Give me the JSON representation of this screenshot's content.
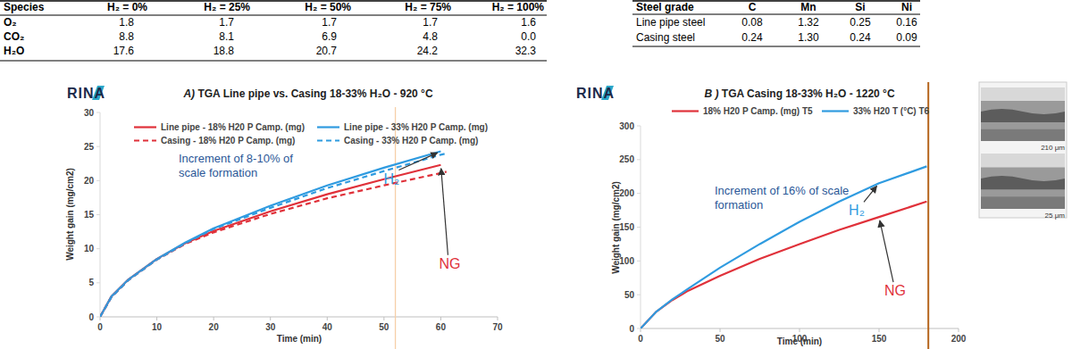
{
  "tables": [
    {
      "header": [
        "Species",
        "H₂ = 0%",
        "H₂ = 25%",
        "H₂ = 50%",
        "H₂ = 75%",
        "H₂ = 100%"
      ],
      "rows": [
        [
          "O₂",
          "1.8",
          "1.7",
          "1.7",
          "1.7",
          "1.6"
        ],
        [
          "CO₂",
          "8.8",
          "8.1",
          "6.9",
          "4.8",
          "0.0"
        ],
        [
          "H₂O",
          "17.6",
          "18.8",
          "20.7",
          "24.2",
          "32.3"
        ]
      ]
    },
    {
      "header": [
        "Steel grade",
        "C",
        "Mn",
        "Si",
        "Ni"
      ],
      "rows": [
        [
          "Line pipe steel",
          "0.08",
          "1.32",
          "0.25",
          "0.16"
        ],
        [
          "Casing steel",
          "0.24",
          "1.30",
          "0.24",
          "0.09"
        ]
      ]
    }
  ],
  "chart_data": [
    {
      "type": "line",
      "logo": "RINA",
      "panel": "A)",
      "title": "TGA Line pipe vs. Casing 18-33% H₂O - 920 °C",
      "x_label": "Time (min)",
      "y_label": "Weight gain (mg/cm2)",
      "x": [
        0,
        2,
        5,
        10,
        15,
        20,
        30,
        40,
        50,
        60,
        61
      ],
      "series": [
        {
          "name": "Line pipe - 18% H20 P Camp. (mg)",
          "color": "#e0313a",
          "line_style": "solid",
          "values": [
            0,
            3,
            5.5,
            8.5,
            10.8,
            12.6,
            15.5,
            18,
            20.2,
            22.3,
            null
          ]
        },
        {
          "name": "Line pipe - 33% H20 P Camp. (mg)",
          "color": "#2f9be0",
          "line_style": "solid",
          "values": [
            0,
            3,
            5.5,
            8.5,
            10.9,
            13,
            16.3,
            19.3,
            21.9,
            24.3,
            null
          ]
        },
        {
          "name": "Casing - 18% H20 P Camp. (mg)",
          "color": "#e0313a",
          "line_style": "dashed",
          "values": [
            0,
            2.9,
            5.4,
            8.4,
            10.7,
            12.4,
            15.1,
            17.4,
            19.3,
            21.1,
            21.3
          ]
        },
        {
          "name": "Casing - 33% H20 P Camp. (mg)",
          "color": "#2f9be0",
          "line_style": "dashed",
          "values": [
            0,
            2.9,
            5.4,
            8.4,
            10.8,
            12.9,
            16,
            18.9,
            21.4,
            23.8,
            24
          ]
        }
      ],
      "xlim": [
        0,
        70
      ],
      "ylim": [
        0,
        30
      ],
      "xticks": [
        0,
        10,
        20,
        30,
        40,
        50,
        60,
        70
      ],
      "yticks": [
        0,
        5,
        10,
        15,
        20,
        25,
        30
      ],
      "grid": false,
      "legend": "top",
      "annotations": [
        "Increment of 8-10% of scale formation",
        "H₂",
        "NG"
      ],
      "reference_lines": [
        {
          "x": 52,
          "color": "#f6cfa8"
        }
      ]
    },
    {
      "type": "line",
      "logo": "RINA",
      "panel": "B )",
      "title": "TGA Casing 18-33% H₂O - 1220 °C",
      "x_label": "Time (min)",
      "y_label": "Weight gain (mg/cm2)",
      "x": [
        0,
        10,
        20,
        30,
        50,
        75,
        100,
        125,
        150,
        180
      ],
      "series": [
        {
          "name": "18% H20 P Camp. (mg) T5",
          "color": "#e0313a",
          "line_style": "solid",
          "values": [
            0,
            25,
            42,
            56,
            78,
            103,
            125,
            146,
            165,
            188
          ]
        },
        {
          "name": "33% H20 T (°C) T6",
          "color": "#2f9be0",
          "line_style": "solid",
          "values": [
            0,
            25,
            43,
            59,
            90,
            125,
            158,
            188,
            215,
            240
          ]
        }
      ],
      "xlim": [
        0,
        200
      ],
      "ylim": [
        0,
        300
      ],
      "xticks": [
        0,
        50,
        100,
        150,
        200
      ],
      "yticks": [
        0,
        50,
        100,
        150,
        200,
        250,
        300
      ],
      "grid": false,
      "legend": "top",
      "annotations": [
        "Increment of 16% of scale formation",
        "H₂",
        "NG"
      ],
      "reference_lines": [
        {
          "x": 181,
          "color": "#b5651d"
        }
      ],
      "inset_labels": [
        "210 μm",
        "25 μm"
      ]
    }
  ]
}
